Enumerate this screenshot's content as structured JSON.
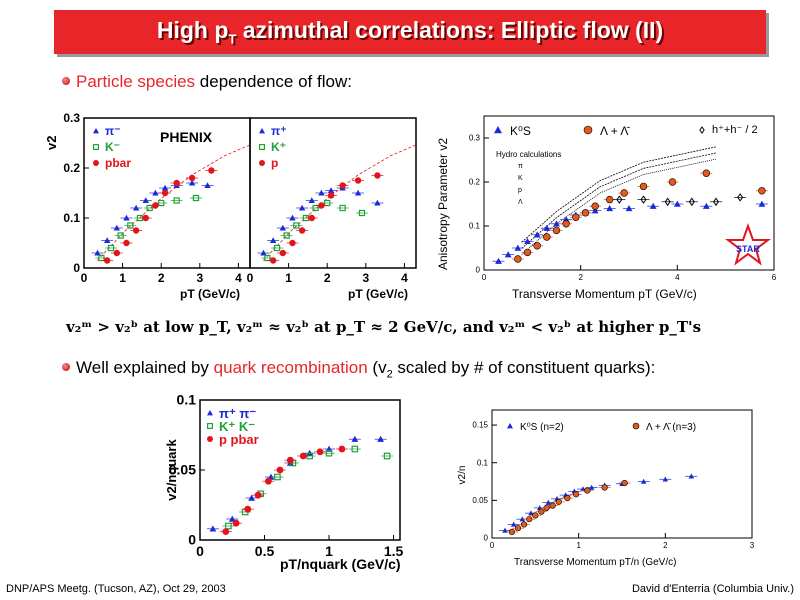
{
  "title": {
    "main": "High p",
    "sub": "T",
    "rest": " azimuthal correlations: Elliptic flow (II)"
  },
  "bullet1": {
    "highlight": "Particle species",
    "rest": " dependence of flow:"
  },
  "bullet2": {
    "pre": "Well explained by ",
    "highlight": "quark recombination",
    "mid": " (v",
    "sub": "2",
    "post": " scaled by # of constituent quarks):"
  },
  "equation": "v₂ᵐ > v₂ᵇ at low p_T, v₂ᵐ ≈ v₂ᵇ at p_T ≈ 2 GeV/c, and v₂ᵐ < v₂ᵇ at higher p_T's",
  "footer": {
    "left": "DNP/APS Meetg. (Tucson, AZ), Oct 29, 2003",
    "right": "David d'Enterria (Columbia Univ.)"
  },
  "colors": {
    "title_bg": "#e8262a",
    "accent": "#e8262a",
    "blue": "#1a2bd6",
    "green": "#1fa23a",
    "red": "#e3141b",
    "orange": "#e35a1a"
  },
  "chart_data": [
    {
      "type": "scatter",
      "title": "PHENIX",
      "panel": "mesons-left",
      "xlabel": "pT (GeV/c)",
      "ylabel": "v2",
      "xlim": [
        0,
        4.3
      ],
      "ylim": [
        0,
        0.3
      ],
      "xticks": [
        "0",
        "1",
        "2",
        "3",
        "4"
      ],
      "yticks": [
        "0",
        "0.1",
        "0.2",
        "0.3"
      ],
      "series": [
        {
          "name": "π⁻",
          "color": "#1a2bd6",
          "marker": "triangle",
          "x": [
            0.35,
            0.6,
            0.85,
            1.1,
            1.35,
            1.6,
            1.85,
            2.1,
            2.4,
            2.8,
            3.2
          ],
          "y": [
            0.03,
            0.055,
            0.08,
            0.1,
            0.12,
            0.135,
            0.15,
            0.16,
            0.165,
            0.17,
            0.165
          ]
        },
        {
          "name": "K⁻",
          "color": "#1fa23a",
          "marker": "square-open",
          "x": [
            0.45,
            0.7,
            0.95,
            1.2,
            1.45,
            1.7,
            2.0,
            2.4,
            2.9
          ],
          "y": [
            0.02,
            0.04,
            0.065,
            0.085,
            0.1,
            0.12,
            0.13,
            0.135,
            0.14
          ]
        },
        {
          "name": "pbar",
          "color": "#e3141b",
          "marker": "circle",
          "x": [
            0.6,
            0.85,
            1.1,
            1.35,
            1.6,
            1.85,
            2.1,
            2.4,
            2.8,
            3.3
          ],
          "y": [
            0.015,
            0.03,
            0.05,
            0.075,
            0.1,
            0.125,
            0.15,
            0.17,
            0.18,
            0.195
          ]
        }
      ]
    },
    {
      "type": "scatter",
      "panel": "mesons-right",
      "xlabel": "pT (GeV/c)",
      "xlim": [
        0,
        4.3
      ],
      "ylim": [
        0,
        0.3
      ],
      "xticks": [
        "0",
        "1",
        "2",
        "3",
        "4"
      ],
      "series": [
        {
          "name": "π⁺",
          "color": "#1a2bd6",
          "marker": "triangle",
          "x": [
            0.35,
            0.6,
            0.85,
            1.1,
            1.35,
            1.6,
            1.85,
            2.1,
            2.4,
            2.8,
            3.3
          ],
          "y": [
            0.03,
            0.055,
            0.08,
            0.1,
            0.12,
            0.135,
            0.15,
            0.155,
            0.16,
            0.15,
            0.13
          ]
        },
        {
          "name": "K⁺",
          "color": "#1fa23a",
          "marker": "square-open",
          "x": [
            0.45,
            0.7,
            0.95,
            1.2,
            1.45,
            1.7,
            2.0,
            2.4,
            2.9
          ],
          "y": [
            0.02,
            0.04,
            0.065,
            0.085,
            0.1,
            0.12,
            0.13,
            0.12,
            0.11
          ]
        },
        {
          "name": "p",
          "color": "#e3141b",
          "marker": "circle",
          "x": [
            0.6,
            0.85,
            1.1,
            1.35,
            1.6,
            1.85,
            2.1,
            2.4,
            2.8,
            3.3
          ],
          "y": [
            0.015,
            0.03,
            0.05,
            0.075,
            0.1,
            0.125,
            0.145,
            0.165,
            0.175,
            0.185
          ]
        }
      ]
    },
    {
      "type": "scatter",
      "title": "STAR",
      "panel": "star-upper",
      "xlabel": "Transverse Momentum pT (GeV/c)",
      "ylabel": "Anisotropy Parameter v2",
      "xlim": [
        0,
        6
      ],
      "ylim": [
        0,
        0.35
      ],
      "xticks": [
        "0",
        "2",
        "4",
        "6"
      ],
      "yticks": [
        "0",
        "0.1",
        "0.2",
        "0.3"
      ],
      "annotations": [
        "Hydro calculations",
        "π",
        "K",
        "p",
        "Λ"
      ],
      "series": [
        {
          "name": "K⁰S",
          "color": "#1a2bd6",
          "marker": "triangle",
          "x": [
            0.3,
            0.5,
            0.7,
            0.9,
            1.1,
            1.3,
            1.5,
            1.7,
            1.9,
            2.1,
            2.3,
            2.6,
            3.0,
            3.5,
            4.0,
            4.6
          ],
          "y": [
            0.02,
            0.035,
            0.05,
            0.065,
            0.08,
            0.095,
            0.105,
            0.115,
            0.125,
            0.13,
            0.135,
            0.14,
            0.14,
            0.145,
            0.15,
            0.145
          ]
        },
        {
          "name": "Λ + Λ̄",
          "color": "#e35a1a",
          "marker": "circle",
          "x": [
            0.7,
            0.9,
            1.1,
            1.3,
            1.5,
            1.7,
            1.9,
            2.1,
            2.3,
            2.6,
            2.9,
            3.3,
            3.9,
            4.6
          ],
          "y": [
            0.025,
            0.04,
            0.055,
            0.075,
            0.09,
            0.105,
            0.12,
            0.13,
            0.145,
            0.16,
            0.175,
            0.19,
            0.2,
            0.22
          ]
        },
        {
          "name": "h⁺+h⁻ / 2",
          "color": "#000000",
          "marker": "diamond-open",
          "x": [
            2.8,
            3.3,
            3.8,
            4.3,
            4.8,
            5.3
          ],
          "y": [
            0.16,
            0.16,
            0.155,
            0.155,
            0.155,
            0.165
          ]
        },
        {
          "name": "K⁰S (high pT)",
          "color": "#1a2bd6",
          "marker": "triangle",
          "x": [
            5.75
          ],
          "y": [
            0.15
          ]
        },
        {
          "name": "Λ + Λ̄ (high pT)",
          "color": "#e35a1a",
          "marker": "circle",
          "x": [
            5.75
          ],
          "y": [
            0.18
          ]
        }
      ]
    },
    {
      "type": "scatter",
      "panel": "phenix-scaled",
      "xlabel": "pT/nquark (GeV/c)",
      "ylabel": "v2/nquark",
      "xlim": [
        0,
        1.55
      ],
      "ylim": [
        0,
        0.1
      ],
      "xticks": [
        "0",
        "0.5",
        "1",
        "1.5"
      ],
      "yticks": [
        "0",
        "0.05",
        "0.1"
      ],
      "series": [
        {
          "name": "π⁺ π⁻",
          "color": "#1a2bd6",
          "marker": "triangle",
          "x": [
            0.1,
            0.25,
            0.4,
            0.55,
            0.7,
            0.85,
            1.0,
            1.2,
            1.4
          ],
          "y": [
            0.008,
            0.015,
            0.03,
            0.045,
            0.055,
            0.062,
            0.065,
            0.072,
            0.072
          ]
        },
        {
          "name": "K⁺ K⁻",
          "color": "#1fa23a",
          "marker": "square-open",
          "x": [
            0.22,
            0.35,
            0.47,
            0.6,
            0.72,
            0.85,
            1.0,
            1.2,
            1.45
          ],
          "y": [
            0.01,
            0.02,
            0.033,
            0.045,
            0.055,
            0.06,
            0.062,
            0.065,
            0.06
          ]
        },
        {
          "name": "p pbar",
          "color": "#e3141b",
          "marker": "circle",
          "x": [
            0.2,
            0.28,
            0.37,
            0.45,
            0.53,
            0.62,
            0.7,
            0.8,
            0.93,
            1.1
          ],
          "y": [
            0.006,
            0.012,
            0.022,
            0.032,
            0.042,
            0.05,
            0.057,
            0.06,
            0.063,
            0.065
          ]
        }
      ]
    },
    {
      "type": "scatter",
      "panel": "star-scaled",
      "xlabel": "Transverse Momentum pT/n (GeV/c)",
      "ylabel": "v2/n",
      "xlim": [
        0,
        3
      ],
      "ylim": [
        0,
        0.17
      ],
      "xticks": [
        "0",
        "1",
        "2",
        "3"
      ],
      "yticks": [
        "0",
        "0.05",
        "0.1",
        "0.15"
      ],
      "series": [
        {
          "name": "K⁰S (n=2)",
          "color": "#1a2bd6",
          "marker": "triangle",
          "x": [
            0.15,
            0.25,
            0.35,
            0.45,
            0.55,
            0.65,
            0.75,
            0.85,
            0.95,
            1.05,
            1.15,
            1.3,
            1.5,
            1.75,
            2.0,
            2.3
          ],
          "y": [
            0.01,
            0.018,
            0.025,
            0.033,
            0.04,
            0.047,
            0.052,
            0.057,
            0.062,
            0.065,
            0.067,
            0.07,
            0.072,
            0.075,
            0.078,
            0.082
          ]
        },
        {
          "name": "Λ + Λ̄ (n=3)",
          "color": "#e35a1a",
          "marker": "circle",
          "x": [
            0.23,
            0.3,
            0.37,
            0.43,
            0.5,
            0.57,
            0.63,
            0.7,
            0.77,
            0.87,
            0.97,
            1.1,
            1.3,
            1.53
          ],
          "y": [
            0.008,
            0.013,
            0.018,
            0.025,
            0.03,
            0.035,
            0.04,
            0.043,
            0.048,
            0.053,
            0.058,
            0.063,
            0.067,
            0.073
          ]
        }
      ]
    }
  ]
}
